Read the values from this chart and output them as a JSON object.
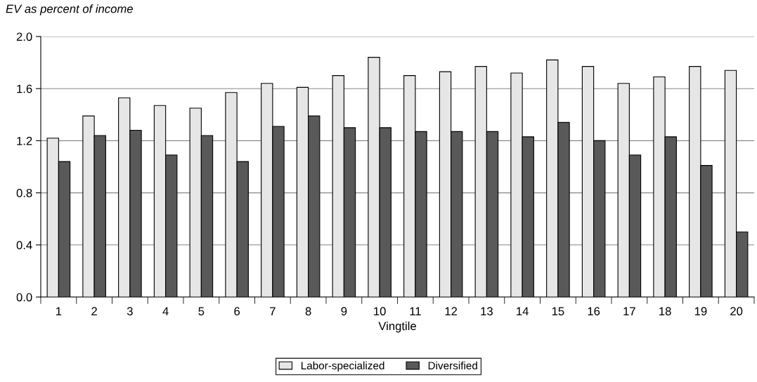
{
  "chart_data": {
    "type": "bar",
    "title": "EV as percent of income",
    "xlabel": "Vingtile",
    "categories": [
      "1",
      "2",
      "3",
      "4",
      "5",
      "6",
      "7",
      "8",
      "9",
      "10",
      "11",
      "12",
      "13",
      "14",
      "15",
      "16",
      "17",
      "18",
      "19",
      "20"
    ],
    "series": [
      {
        "name": "Labor-specialized",
        "color": "#e6e6e6",
        "values": [
          1.22,
          1.39,
          1.53,
          1.47,
          1.45,
          1.57,
          1.64,
          1.61,
          1.7,
          1.84,
          1.7,
          1.73,
          1.77,
          1.72,
          1.82,
          1.77,
          1.64,
          1.69,
          1.77,
          1.74
        ]
      },
      {
        "name": "Diversified",
        "color": "#595959",
        "values": [
          1.04,
          1.24,
          1.28,
          1.09,
          1.24,
          1.04,
          1.31,
          1.39,
          1.3,
          1.3,
          1.27,
          1.27,
          1.27,
          1.23,
          1.34,
          1.2,
          1.09,
          1.23,
          1.01,
          0.5
        ]
      }
    ],
    "ylim": [
      0,
      2.0
    ],
    "yticks": [
      {
        "value": 0,
        "label": "0.0"
      },
      {
        "value": 0.4,
        "label": "0.4"
      },
      {
        "value": 0.8,
        "label": "0.8"
      },
      {
        "value": 1.2,
        "label": "1.2"
      },
      {
        "value": 1.6,
        "label": "1.6"
      },
      {
        "value": 2.0,
        "label": "2.0"
      }
    ],
    "grid": "y",
    "legend": "bottom"
  }
}
